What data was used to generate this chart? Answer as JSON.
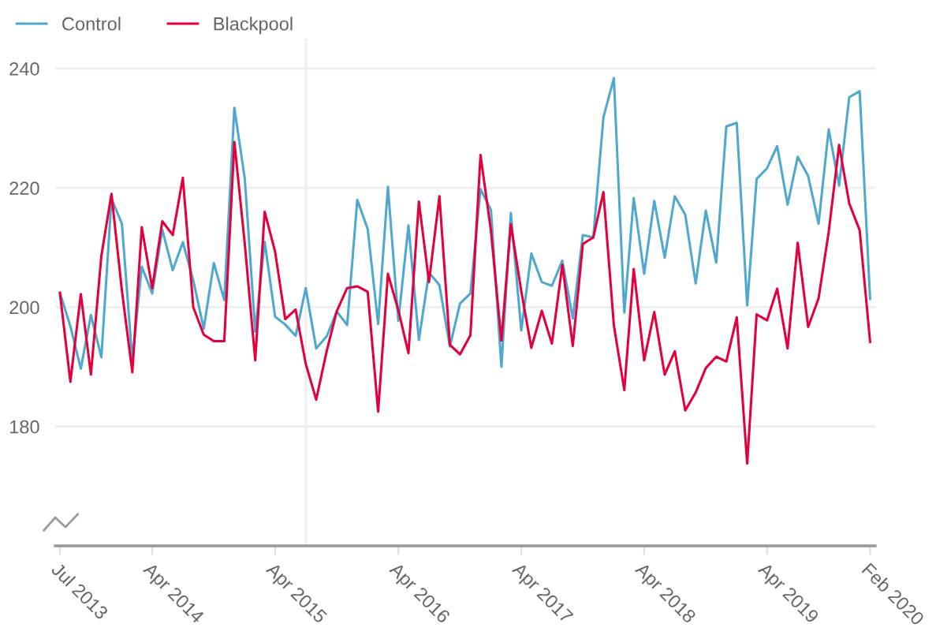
{
  "chart_data": {
    "type": "line",
    "x": [
      "2013-07",
      "2013-08",
      "2013-09",
      "2013-10",
      "2013-11",
      "2013-12",
      "2014-01",
      "2014-02",
      "2014-03",
      "2014-04",
      "2014-05",
      "2014-06",
      "2014-07",
      "2014-08",
      "2014-09",
      "2014-10",
      "2014-11",
      "2014-12",
      "2015-01",
      "2015-02",
      "2015-03",
      "2015-04",
      "2015-05",
      "2015-06",
      "2015-07",
      "2015-08",
      "2015-09",
      "2015-10",
      "2015-11",
      "2015-12",
      "2016-01",
      "2016-02",
      "2016-03",
      "2016-04",
      "2016-05",
      "2016-06",
      "2016-07",
      "2016-08",
      "2016-09",
      "2016-10",
      "2016-11",
      "2016-12",
      "2017-01",
      "2017-02",
      "2017-03",
      "2017-04",
      "2017-05",
      "2017-06",
      "2017-07",
      "2017-08",
      "2017-09",
      "2017-10",
      "2017-11",
      "2017-12",
      "2018-01",
      "2018-02",
      "2018-03",
      "2018-04",
      "2018-05",
      "2018-06",
      "2018-07",
      "2018-08",
      "2018-09",
      "2018-10",
      "2018-11",
      "2018-12",
      "2019-01",
      "2019-02",
      "2019-03",
      "2019-04",
      "2019-05",
      "2019-06",
      "2019-07",
      "2019-08",
      "2019-09",
      "2019-10",
      "2019-11",
      "2019-12",
      "2020-01",
      "2020-02"
    ],
    "series": [
      {
        "name": "Control",
        "color": "#4fa8cf",
        "values": [
          202.4,
          196.8,
          189.7,
          198.7,
          191.6,
          218.2,
          214.0,
          191.1,
          206.8,
          202.3,
          213.0,
          206.2,
          210.9,
          204.5,
          196.4,
          207.4,
          201.2,
          233.4,
          221.5,
          195.9,
          211.0,
          198.4,
          197.1,
          195.2,
          203.2,
          193.1,
          195.1,
          199.3,
          197.0,
          218.0,
          213.1,
          197.2,
          220.2,
          197.7,
          213.7,
          194.5,
          205.8,
          203.7,
          193.4,
          200.6,
          202.3,
          219.8,
          216.3,
          190.0,
          215.8,
          196.1,
          209.0,
          204.2,
          203.6,
          207.8,
          198.1,
          212.1,
          211.7,
          231.8,
          238.4,
          199.1,
          218.3,
          205.6,
          217.8,
          208.3,
          218.6,
          215.5,
          204.0,
          216.2,
          207.5,
          230.3,
          230.9,
          200.3,
          221.5,
          223.3,
          227.0,
          217.2,
          225.2,
          222.0,
          214.0,
          229.8,
          220.4,
          235.2,
          236.2,
          201.4
        ]
      },
      {
        "name": "Blackpool",
        "color": "#e3003d",
        "values": [
          202.4,
          187.5,
          202.2,
          188.7,
          208.6,
          219.0,
          202.8,
          189.1,
          213.4,
          203.2,
          214.4,
          212.1,
          221.7,
          200.0,
          195.4,
          194.3,
          194.3,
          227.7,
          210.6,
          191.1,
          216.0,
          209.3,
          198.0,
          199.6,
          190.5,
          184.5,
          192.6,
          199.3,
          203.2,
          203.5,
          202.6,
          182.5,
          205.6,
          199.5,
          192.3,
          217.7,
          204.2,
          218.6,
          193.7,
          192.1,
          195.3,
          225.5,
          212.8,
          194.4,
          213.9,
          202.7,
          193.2,
          199.4,
          193.9,
          207.1,
          193.5,
          210.6,
          211.7,
          219.3,
          197.0,
          186.1,
          206.4,
          191.1,
          199.2,
          188.7,
          192.6,
          182.7,
          185.7,
          189.8,
          191.7,
          190.9,
          198.3,
          173.8,
          198.8,
          197.8,
          203.1,
          193.1,
          210.8,
          196.7,
          201.5,
          212.6,
          227.2,
          217.4,
          212.9,
          194.2
        ]
      }
    ],
    "xlim": [
      "2013-06-17",
      "2020-02-16"
    ],
    "xticks": [
      {
        "value": "2013-07",
        "label": "Jul 2013"
      },
      {
        "value": "2014-04",
        "label": "Apr 2014"
      },
      {
        "value": "2015-04",
        "label": "Apr 2015"
      },
      {
        "value": "2016-04",
        "label": "Apr 2016"
      },
      {
        "value": "2017-04",
        "label": "Apr 2017"
      },
      {
        "value": "2018-04",
        "label": "Apr 2018"
      },
      {
        "value": "2019-04",
        "label": "Apr 2019"
      },
      {
        "value": "2020-02",
        "label": "Feb 2020"
      }
    ],
    "ylim": [
      160,
      245
    ],
    "yticks": [
      180,
      200,
      220,
      240
    ],
    "ref_lines": [
      {
        "axis": "x",
        "value": "2015-07",
        "color": "#eeeeee"
      }
    ],
    "grid": "y",
    "legend": "top left",
    "line_style": "solid",
    "marker": "none"
  }
}
